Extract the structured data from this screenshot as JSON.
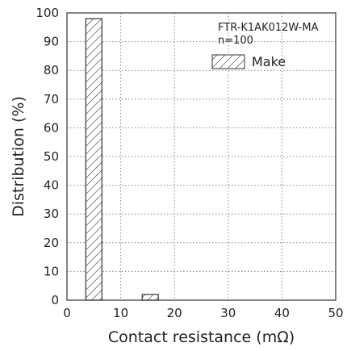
{
  "chart_data": {
    "type": "bar",
    "xlabel": "Contact resistance (mΩ)",
    "ylabel": "Distribution (%)",
    "xlim": [
      0,
      50
    ],
    "ylim": [
      0,
      100
    ],
    "xticks": [
      0,
      10,
      20,
      30,
      40,
      50
    ],
    "yticks": [
      0,
      10,
      20,
      30,
      40,
      50,
      60,
      70,
      80,
      90,
      100
    ],
    "grid": true,
    "grid_style": "dotted",
    "bar_fill": "diagonal-hatch",
    "annotations": [
      "FTR-K1AK012W-MA",
      "n=100"
    ],
    "legend_position": "top-right",
    "series": [
      {
        "name": "Make",
        "bins": [
          {
            "x_start": 3.5,
            "x_end": 6.5,
            "value": 98
          },
          {
            "x_start": 14,
            "x_end": 17,
            "value": 2
          }
        ]
      }
    ]
  }
}
